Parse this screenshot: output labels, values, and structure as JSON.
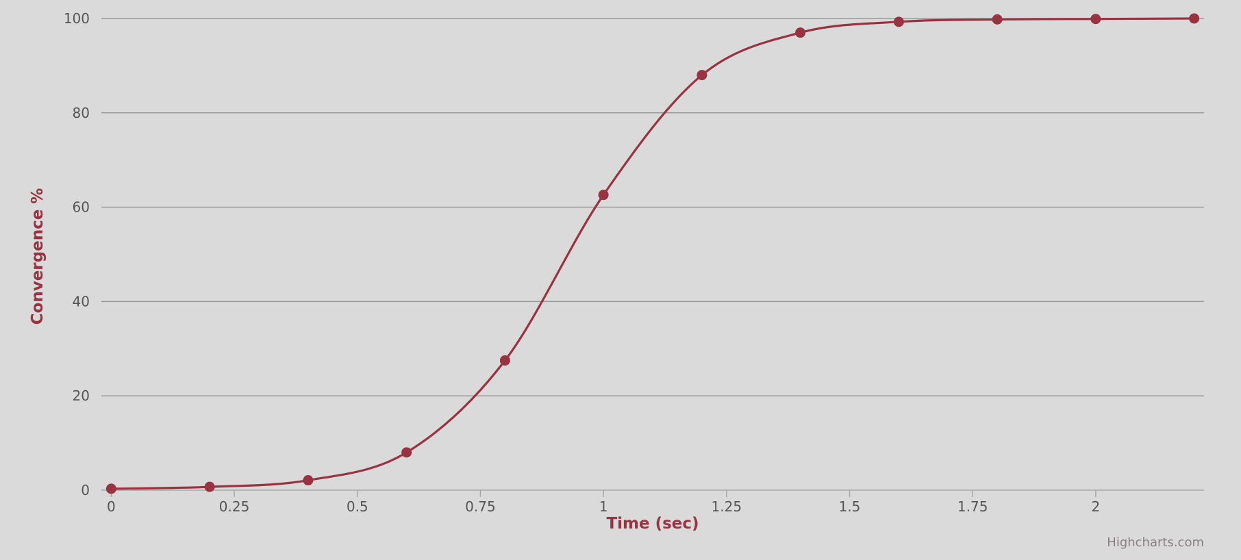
{
  "chart_data": {
    "type": "line",
    "title": "",
    "xlabel": "Time (sec)",
    "ylabel": "Convergence %",
    "xlim": [
      -0.02,
      2.22
    ],
    "ylim": [
      0,
      100
    ],
    "x_ticks": [
      0,
      0.25,
      0.5,
      0.75,
      1,
      1.25,
      1.5,
      1.75,
      2
    ],
    "x_tick_labels": [
      "0",
      "0.25",
      "0.5",
      "0.75",
      "1",
      "1.25",
      "1.5",
      "1.75",
      "2"
    ],
    "y_ticks": [
      0,
      20,
      40,
      60,
      80,
      100
    ],
    "y_tick_labels": [
      "0",
      "20",
      "40",
      "60",
      "80",
      "100"
    ],
    "grid": "horizontal",
    "legend": "none",
    "smooth": true,
    "series": [
      {
        "x": [
          0,
          0.2,
          0.4,
          0.6,
          0.8,
          1.0,
          1.2,
          1.4,
          1.6,
          1.8,
          2.0,
          2.2
        ],
        "y": [
          0.3,
          0.7,
          2.1,
          8.0,
          27.5,
          62.6,
          88.0,
          97.0,
          99.3,
          99.8,
          99.9,
          100
        ],
        "color": "#993341"
      }
    ],
    "credits": "Highcharts.com"
  },
  "colors": {
    "background": "#dadada",
    "series": "#993341",
    "grid": "#9a9a9a",
    "axis_title": "#993341",
    "tick_label": "#555555",
    "credits": "#8a7f80"
  }
}
